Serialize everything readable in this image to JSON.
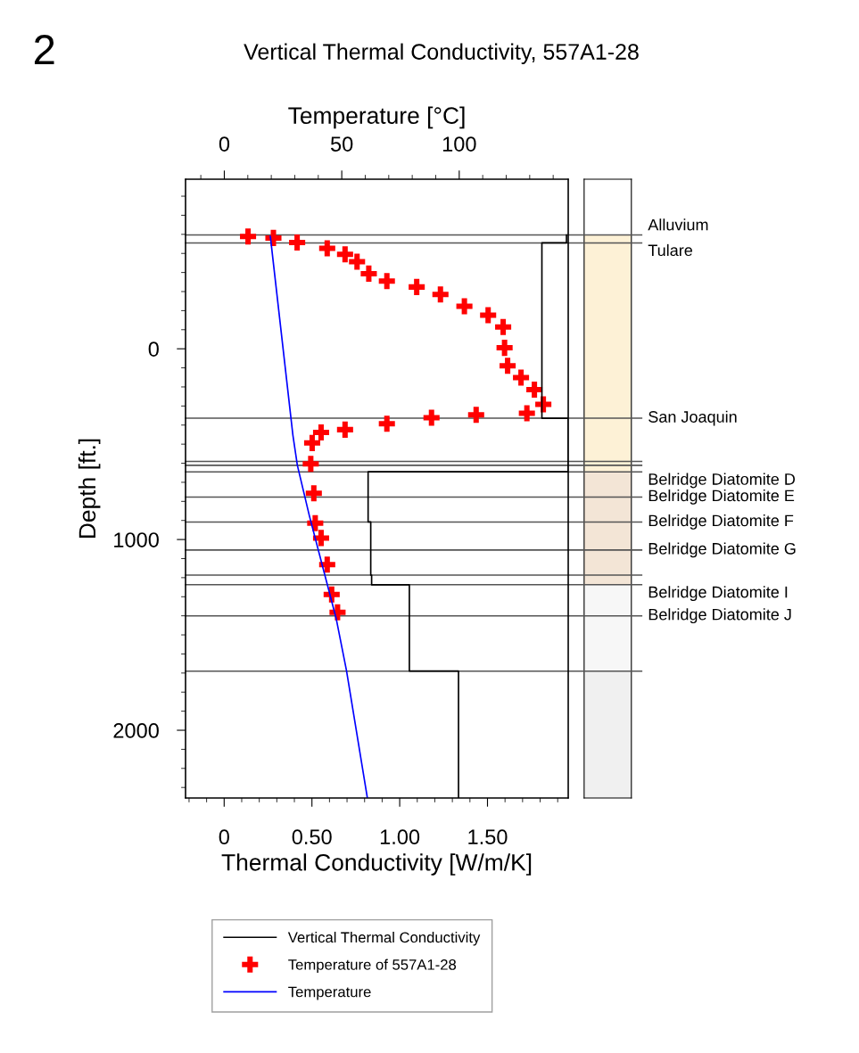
{
  "chart_data": {
    "type": "line",
    "title": "Vertical Thermal Conductivity, 557A1-28",
    "xlabel": "Temperature [°C]",
    "x2label": "Thermal Conductivity [W/m/K]",
    "ylabel": "Depth [ft.]",
    "annotations": [
      "2"
    ],
    "xlim": [
      -16.5,
      146.4
    ],
    "x2lim": [
      -0.22,
      1.96
    ],
    "ylim": [
      2355,
      -889
    ],
    "xticks": [
      {
        "value": -10,
        "label": null
      },
      0,
      {
        "value": 10,
        "label": null
      },
      {
        "value": 20,
        "label": null
      },
      {
        "value": 30,
        "label": null
      },
      {
        "value": 40,
        "label": null
      },
      50,
      {
        "value": 60,
        "label": null
      },
      {
        "value": 70,
        "label": null
      },
      {
        "value": 80,
        "label": null
      },
      {
        "value": 90,
        "label": null
      },
      100,
      {
        "value": 110,
        "label": null
      },
      {
        "value": 120,
        "label": null
      },
      {
        "value": 130,
        "label": null
      },
      {
        "value": 140,
        "label": null
      }
    ],
    "x2ticks": [
      {
        "value": -0.2,
        "label": null
      },
      {
        "value": -0.1,
        "label": null
      },
      0,
      {
        "value": 0.1,
        "label": null
      },
      {
        "value": 0.2,
        "label": null
      },
      {
        "value": 0.3,
        "label": null
      },
      {
        "value": 0.4,
        "label": null
      },
      {
        "value": 0.5,
        "label": "0.50"
      },
      {
        "value": 0.6,
        "label": null
      },
      {
        "value": 0.7,
        "label": null
      },
      {
        "value": 0.8,
        "label": null
      },
      {
        "value": 0.9,
        "label": null
      },
      {
        "value": 1.0,
        "label": "1.00"
      },
      {
        "value": 1.1,
        "label": null
      },
      {
        "value": 1.2,
        "label": null
      },
      {
        "value": 1.3,
        "label": null
      },
      {
        "value": 1.4,
        "label": null
      },
      {
        "value": 1.5,
        "label": "1.50"
      },
      {
        "value": 1.6,
        "label": null
      },
      {
        "value": 1.7,
        "label": null
      },
      {
        "value": 1.8,
        "label": null
      },
      {
        "value": 1.9,
        "label": null
      }
    ],
    "yticks": [
      {
        "value": -800,
        "label": null
      },
      {
        "value": -700,
        "label": null
      },
      {
        "value": -600,
        "label": null
      },
      {
        "value": -500,
        "label": null
      },
      {
        "value": -400,
        "label": null
      },
      {
        "value": -300,
        "label": null
      },
      {
        "value": -200,
        "label": null
      },
      {
        "value": -100,
        "label": null
      },
      0,
      {
        "value": 100,
        "label": null
      },
      {
        "value": 200,
        "label": null
      },
      {
        "value": 300,
        "label": null
      },
      {
        "value": 400,
        "label": null
      },
      {
        "value": 500,
        "label": null
      },
      {
        "value": 600,
        "label": null
      },
      {
        "value": 700,
        "label": null
      },
      {
        "value": 800,
        "label": null
      },
      {
        "value": 900,
        "label": null
      },
      1000,
      {
        "value": 1100,
        "label": null
      },
      {
        "value": 1200,
        "label": null
      },
      {
        "value": 1300,
        "label": null
      },
      {
        "value": 1400,
        "label": null
      },
      {
        "value": 1500,
        "label": null
      },
      {
        "value": 1600,
        "label": null
      },
      {
        "value": 1700,
        "label": null
      },
      {
        "value": 1800,
        "label": null
      },
      {
        "value": 1900,
        "label": null
      },
      2000,
      {
        "value": 2100,
        "label": null
      },
      {
        "value": 2200,
        "label": null
      },
      {
        "value": 2300,
        "label": null
      }
    ],
    "legend": "bottom",
    "line_style": "solid",
    "series": [
      {
        "name": "Vertical Thermal Conductivity",
        "type": "line",
        "axis": "x2",
        "color": "#000000",
        "marker": "none",
        "x": [
          1.95,
          1.95,
          1.81,
          1.81,
          1.96,
          1.96,
          0.82,
          0.82,
          0.835,
          0.835,
          0.84,
          0.84,
          1.055,
          1.055,
          1.335,
          1.335
        ],
        "values": [
          -597,
          -555,
          -555,
          364,
          364,
          645,
          645,
          908,
          908,
          1187,
          1187,
          1237,
          1237,
          1690,
          1690,
          2355
        ]
      },
      {
        "name": "Temperature of 557A1-28",
        "type": "scatter",
        "color": "#ff0000",
        "marker": "cross",
        "x": [
          10.1,
          20.9,
          31.0,
          43.8,
          51.4,
          56.5,
          61.5,
          69.2,
          81.9,
          92.0,
          102.2,
          112.3,
          118.7,
          119.3,
          120.6,
          126.3,
          132.0,
          135.8,
          128.8,
          107.2,
          88.2,
          69.2,
          51.4,
          41.2,
          37.4,
          36.8,
          38.1,
          38.7,
          41.2,
          43.8,
          45.7,
          48.2
        ],
        "values": [
          -589,
          -581,
          -557,
          -527,
          -495,
          -457,
          -394,
          -355,
          -324,
          -285,
          -223,
          -176,
          -114,
          -5,
          89,
          151,
          214,
          291,
          338,
          346,
          361,
          393,
          424,
          439,
          494,
          603,
          758,
          914,
          992,
          1132,
          1288,
          1382
        ]
      },
      {
        "name": "Temperature",
        "type": "line",
        "color": "#0000ff",
        "marker": "none",
        "x": [
          19.6,
          29.2,
          31.1,
          36.2,
          47.6,
          52.0,
          60.9
        ],
        "values": [
          -589,
          453,
          611,
          875,
          1413,
          1686,
          2355
        ]
      }
    ],
    "ref_lines": [
      {
        "axis": "y",
        "value": -597,
        "label": "Alluvium"
      },
      {
        "axis": "y",
        "value": -555,
        "label": "Tulare"
      },
      {
        "axis": "y",
        "value": 364,
        "label": "San Joaquin"
      },
      {
        "axis": "y",
        "value": 590
      },
      {
        "axis": "y",
        "value": 611
      },
      {
        "axis": "y",
        "value": 645,
        "label": "Belridge Diatomite D"
      },
      {
        "axis": "y",
        "value": 777,
        "label": "Belridge Diatomite E"
      },
      {
        "axis": "y",
        "value": 908,
        "label": "Belridge Diatomite F"
      },
      {
        "axis": "y",
        "value": 1055,
        "label": "Belridge Diatomite G"
      },
      {
        "axis": "y",
        "value": 1187
      },
      {
        "axis": "y",
        "value": 1237,
        "label": "Belridge Diatomite I"
      },
      {
        "axis": "y",
        "value": 1400,
        "label": "Belridge Diatomite J"
      },
      {
        "axis": "y",
        "value": 1690
      }
    ]
  }
}
